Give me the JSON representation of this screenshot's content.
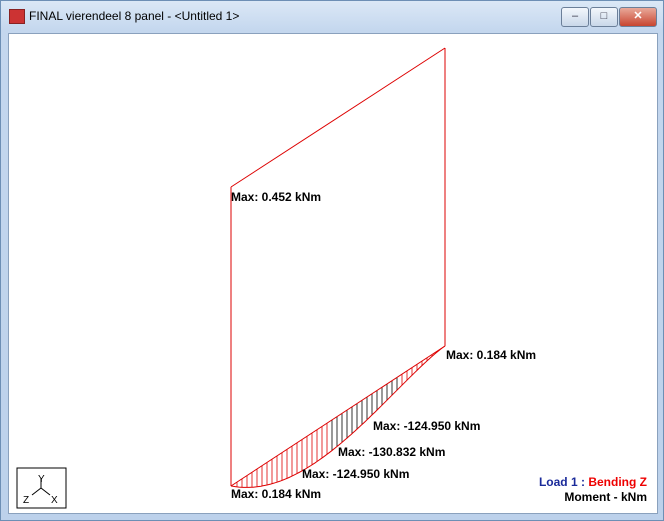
{
  "window": {
    "title": "FINAL vierendeel 8 panel - <Untitled 1>"
  },
  "labels": [
    "Max: 0.452 kNm",
    "Max: 0.184 kNm",
    "Max: -124.950 kNm",
    "Max: -130.832 kNm",
    "Max: -124.950 kNm",
    "Max: 0.184 kNm"
  ],
  "axes": {
    "y": "Y",
    "z": "Z",
    "x": "X"
  },
  "legend": {
    "load": "Load 1",
    "separator": ":",
    "case": "Bending Z",
    "units": "Moment - kNm"
  }
}
